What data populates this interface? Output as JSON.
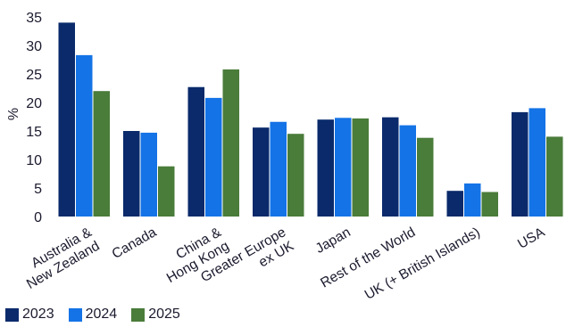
{
  "chart_data": {
    "type": "bar",
    "ylabel": "%",
    "ylim": [
      0,
      35
    ],
    "yticks": [
      0,
      5,
      10,
      15,
      20,
      25,
      30,
      35
    ],
    "grid": false,
    "legend_position": "bottom-left",
    "categories": [
      [
        "Australia &",
        "New Zealand"
      ],
      [
        "Canada"
      ],
      [
        "China &",
        "Hong Kong"
      ],
      [
        "Greater Europe",
        "ex UK"
      ],
      [
        "Japan"
      ],
      [
        "Rest of the World"
      ],
      [
        "UK (+ British Islands)"
      ],
      [
        "USA"
      ]
    ],
    "series": [
      {
        "name": "2023",
        "color": "#0a2a6b",
        "values": [
          34.0,
          15.0,
          22.7,
          15.6,
          17.0,
          17.4,
          4.5,
          18.3
        ]
      },
      {
        "name": "2024",
        "color": "#1473e6",
        "values": [
          28.3,
          14.7,
          20.8,
          16.6,
          17.3,
          16.0,
          5.8,
          19.0
        ]
      },
      {
        "name": "2025",
        "color": "#4a7c3a",
        "values": [
          22.0,
          8.8,
          25.8,
          14.5,
          17.2,
          13.8,
          4.3,
          14.0
        ]
      }
    ]
  }
}
